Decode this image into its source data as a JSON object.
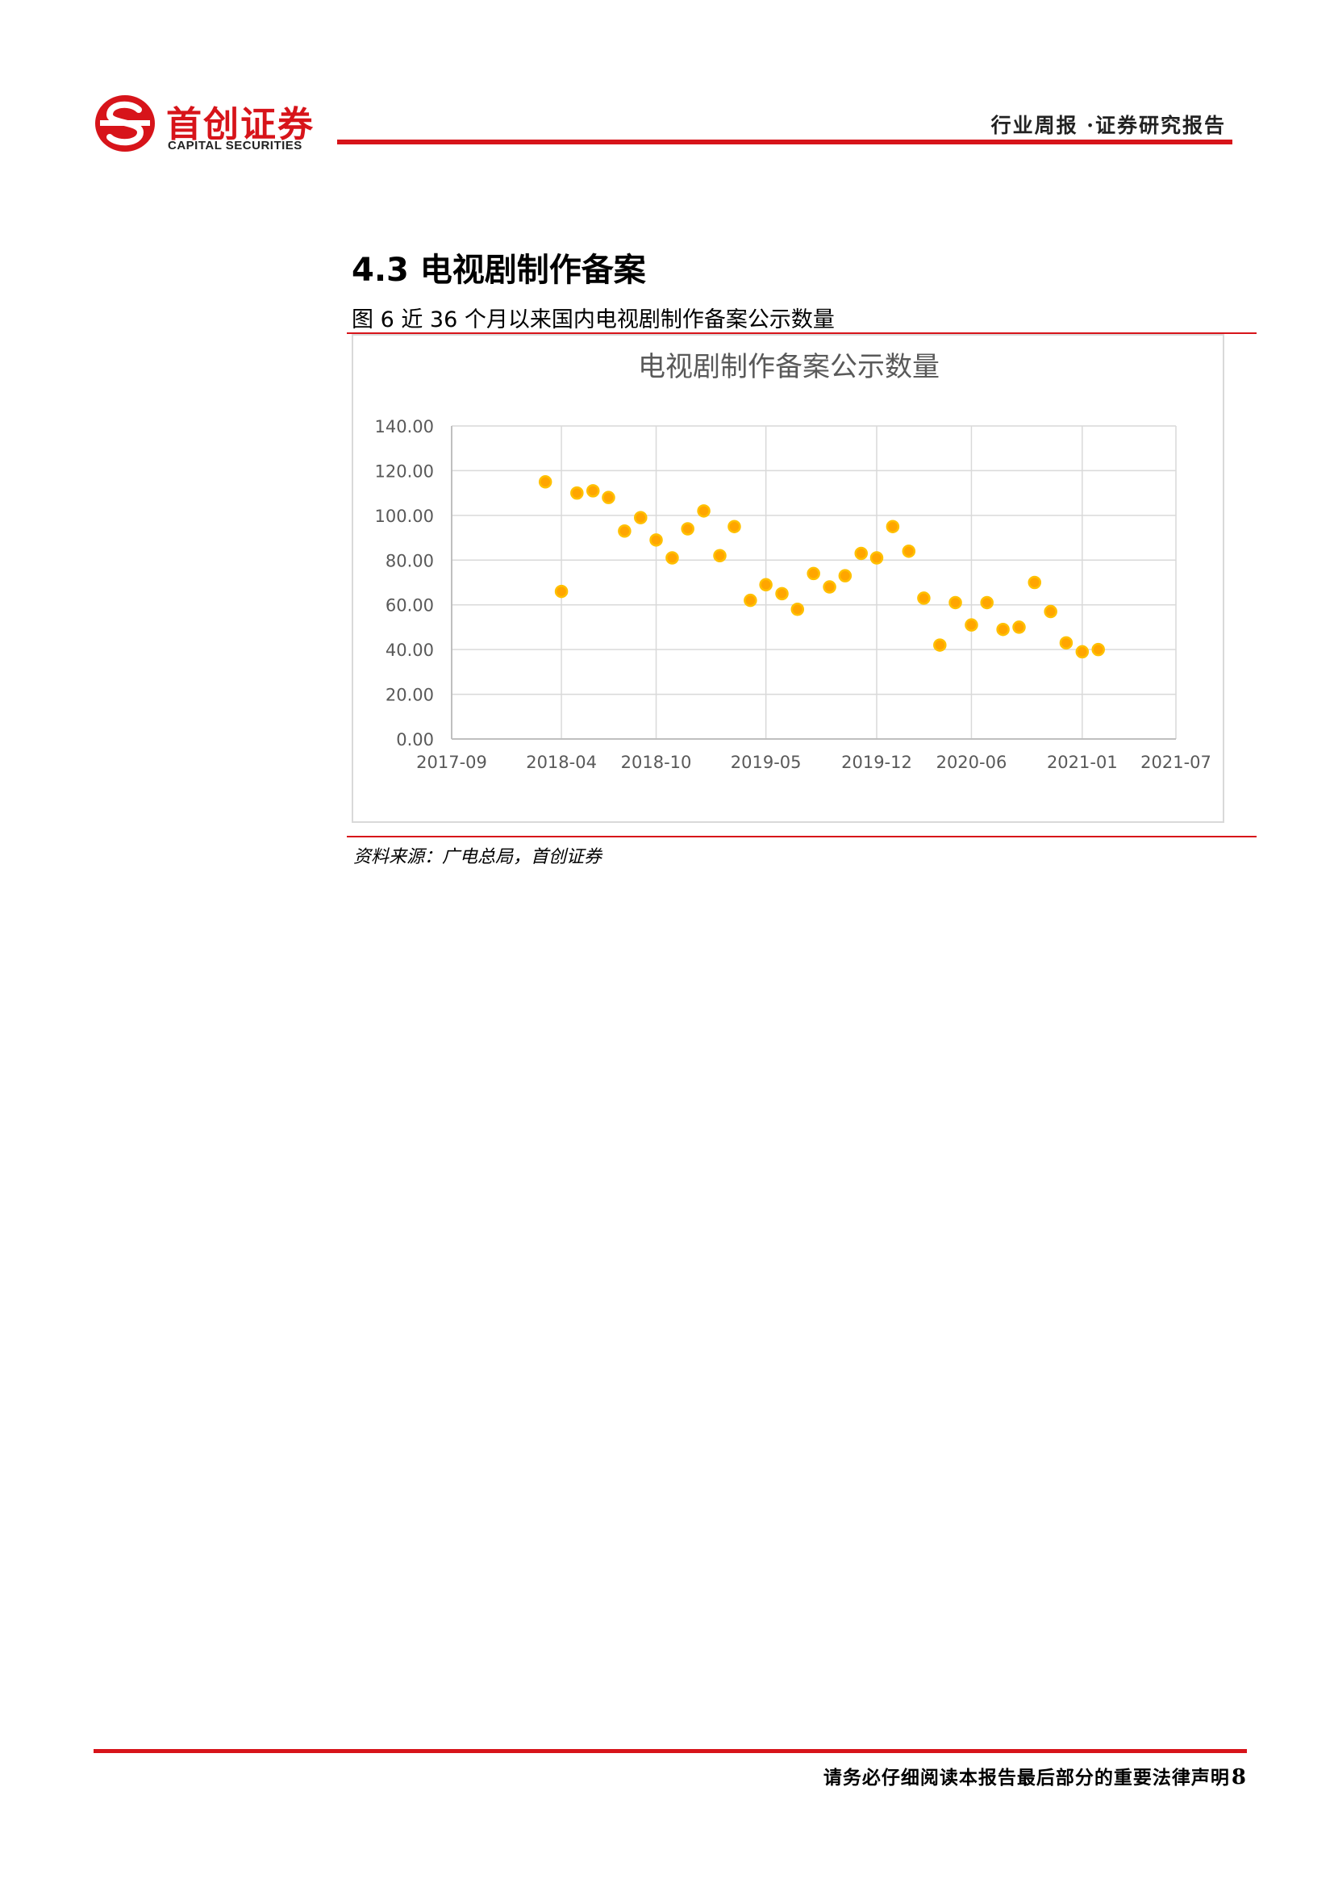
{
  "header": {
    "logo_cn": "首创证券",
    "logo_en": "CAPITAL SECURITIES",
    "report_type": "行业周报 ·证券研究报告"
  },
  "section": {
    "title": "4.3 电视剧制作备案"
  },
  "figure": {
    "caption": "图 6 近 36 个月以来国内电视剧制作备案公示数量",
    "source": "资料来源：广电总局，首创证券"
  },
  "chart_data": {
    "type": "scatter",
    "title": "电视剧制作备案公示数量",
    "xlabel": "",
    "ylabel": "",
    "x_ticks": [
      "2017-09",
      "2018-04",
      "2018-10",
      "2019-05",
      "2019-12",
      "2020-06",
      "2021-01",
      "2021-07"
    ],
    "y_ticks": [
      "0.00",
      "20.00",
      "40.00",
      "60.00",
      "80.00",
      "100.00",
      "120.00",
      "140.00"
    ],
    "xlim": [
      "2017-09-01",
      "2021-07-01"
    ],
    "ylim": [
      0,
      140
    ],
    "grid": true,
    "marker_color": "#ffa500",
    "marker_edge_color": "#ffc000",
    "series": [
      {
        "points": [
          {
            "x": "2018-03-01",
            "y": 115
          },
          {
            "x": "2018-04-01",
            "y": 66
          },
          {
            "x": "2018-05-01",
            "y": 110
          },
          {
            "x": "2018-06-01",
            "y": 111
          },
          {
            "x": "2018-07-01",
            "y": 108
          },
          {
            "x": "2018-08-01",
            "y": 93
          },
          {
            "x": "2018-09-01",
            "y": 99
          },
          {
            "x": "2018-10-01",
            "y": 89
          },
          {
            "x": "2018-11-01",
            "y": 81
          },
          {
            "x": "2018-12-01",
            "y": 94
          },
          {
            "x": "2019-01-01",
            "y": 102
          },
          {
            "x": "2019-02-01",
            "y": 82
          },
          {
            "x": "2019-03-01",
            "y": 95
          },
          {
            "x": "2019-04-01",
            "y": 62
          },
          {
            "x": "2019-05-01",
            "y": 69
          },
          {
            "x": "2019-06-01",
            "y": 65
          },
          {
            "x": "2019-07-01",
            "y": 58
          },
          {
            "x": "2019-08-01",
            "y": 74
          },
          {
            "x": "2019-09-01",
            "y": 68
          },
          {
            "x": "2019-10-01",
            "y": 73
          },
          {
            "x": "2019-11-01",
            "y": 83
          },
          {
            "x": "2019-12-01",
            "y": 81
          },
          {
            "x": "2020-01-01",
            "y": 95
          },
          {
            "x": "2020-02-01",
            "y": 84
          },
          {
            "x": "2020-03-01",
            "y": 63
          },
          {
            "x": "2020-04-01",
            "y": 42
          },
          {
            "x": "2020-05-01",
            "y": 61
          },
          {
            "x": "2020-06-01",
            "y": 51
          },
          {
            "x": "2020-07-01",
            "y": 61
          },
          {
            "x": "2020-08-01",
            "y": 49
          },
          {
            "x": "2020-09-01",
            "y": 50
          },
          {
            "x": "2020-10-01",
            "y": 70
          },
          {
            "x": "2020-11-01",
            "y": 57
          },
          {
            "x": "2020-12-01",
            "y": 43
          },
          {
            "x": "2021-01-01",
            "y": 39
          },
          {
            "x": "2021-02-01",
            "y": 40
          }
        ]
      }
    ]
  },
  "footer": {
    "disclaimer": "请务必仔细阅读本报告最后部分的重要法律声明",
    "page_number": "8"
  },
  "colors": {
    "brand_red": "#d7141a",
    "grid": "#d9d9d9",
    "axis_text": "#595959",
    "title_text": "#595959"
  }
}
